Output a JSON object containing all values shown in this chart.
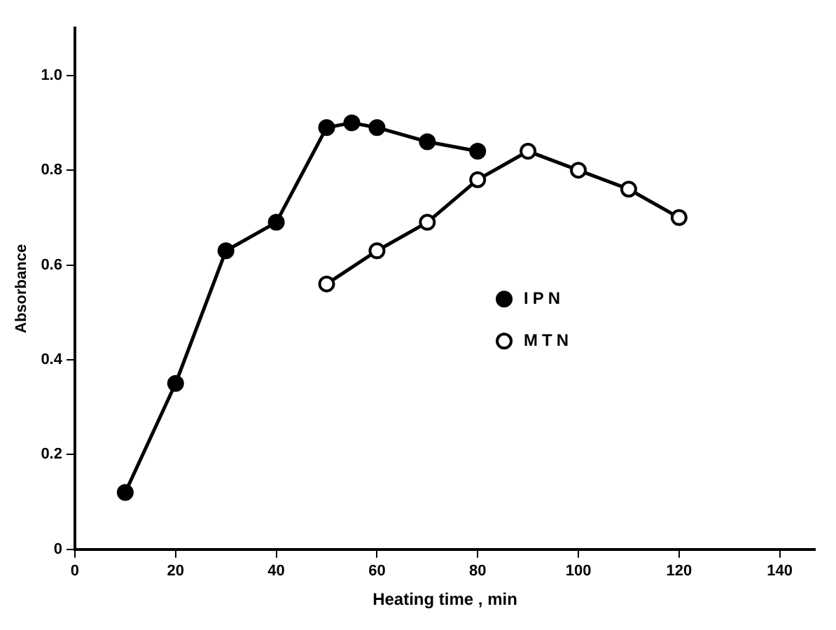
{
  "chart_data": {
    "type": "line",
    "xlabel": "Heating time , min",
    "ylabel": "Absorbance",
    "xlim": [
      0,
      147
    ],
    "xticks": [
      0,
      20,
      40,
      60,
      80,
      100,
      120,
      140
    ],
    "ylim": [
      0,
      1.1
    ],
    "yticks": [
      0,
      {
        "value": 0.2,
        "label": "0.2"
      },
      {
        "value": 0.4,
        "label": "0.4"
      },
      {
        "value": 0.6,
        "label": "0.6"
      },
      {
        "value": 0.8,
        "label": "0.8"
      },
      {
        "value": 1,
        "label": "1.0"
      }
    ],
    "grid": false,
    "legend": "right",
    "marker": "circle",
    "line_style": "solid",
    "series": [
      {
        "name": "IPN",
        "color": "#000000",
        "x": [
          10,
          20,
          30,
          40,
          50,
          55,
          60,
          70,
          80
        ],
        "values": [
          0.12,
          0.35,
          0.63,
          0.69,
          0.89,
          0.9,
          0.89,
          0.86,
          0.84
        ]
      },
      {
        "name": "MTN",
        "color": "#000000",
        "x": [
          50,
          60,
          70,
          80,
          90,
          100,
          110,
          120
        ],
        "values": [
          0.56,
          0.63,
          0.69,
          0.78,
          0.84,
          0.8,
          0.76,
          0.7
        ]
      }
    ]
  }
}
